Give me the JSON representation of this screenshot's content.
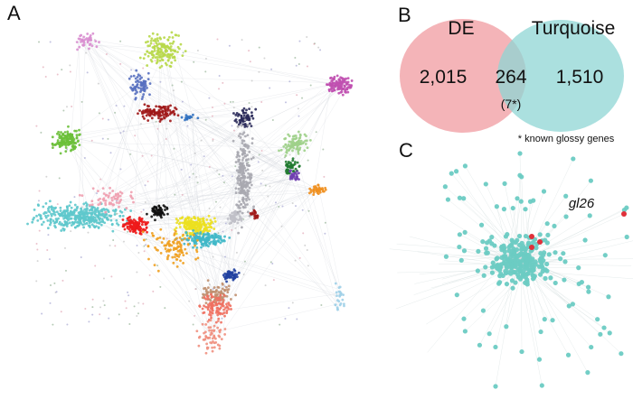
{
  "panels": {
    "a": {
      "letter": "A"
    },
    "b": {
      "letter": "B",
      "set_left": "DE",
      "set_right": "Turquoise",
      "left_only": "2,015",
      "overlap": "264",
      "overlap_known": "(7*)",
      "right_only": "1,510",
      "footnote": "* known glossy genes",
      "colors": {
        "left": "#f2a7ab",
        "right": "#8fd6d4"
      }
    },
    "c": {
      "letter": "C",
      "highlight_gene": "gl26",
      "colors": {
        "node": "#6ccbc3",
        "highlight": "#e0303a"
      }
    }
  }
}
